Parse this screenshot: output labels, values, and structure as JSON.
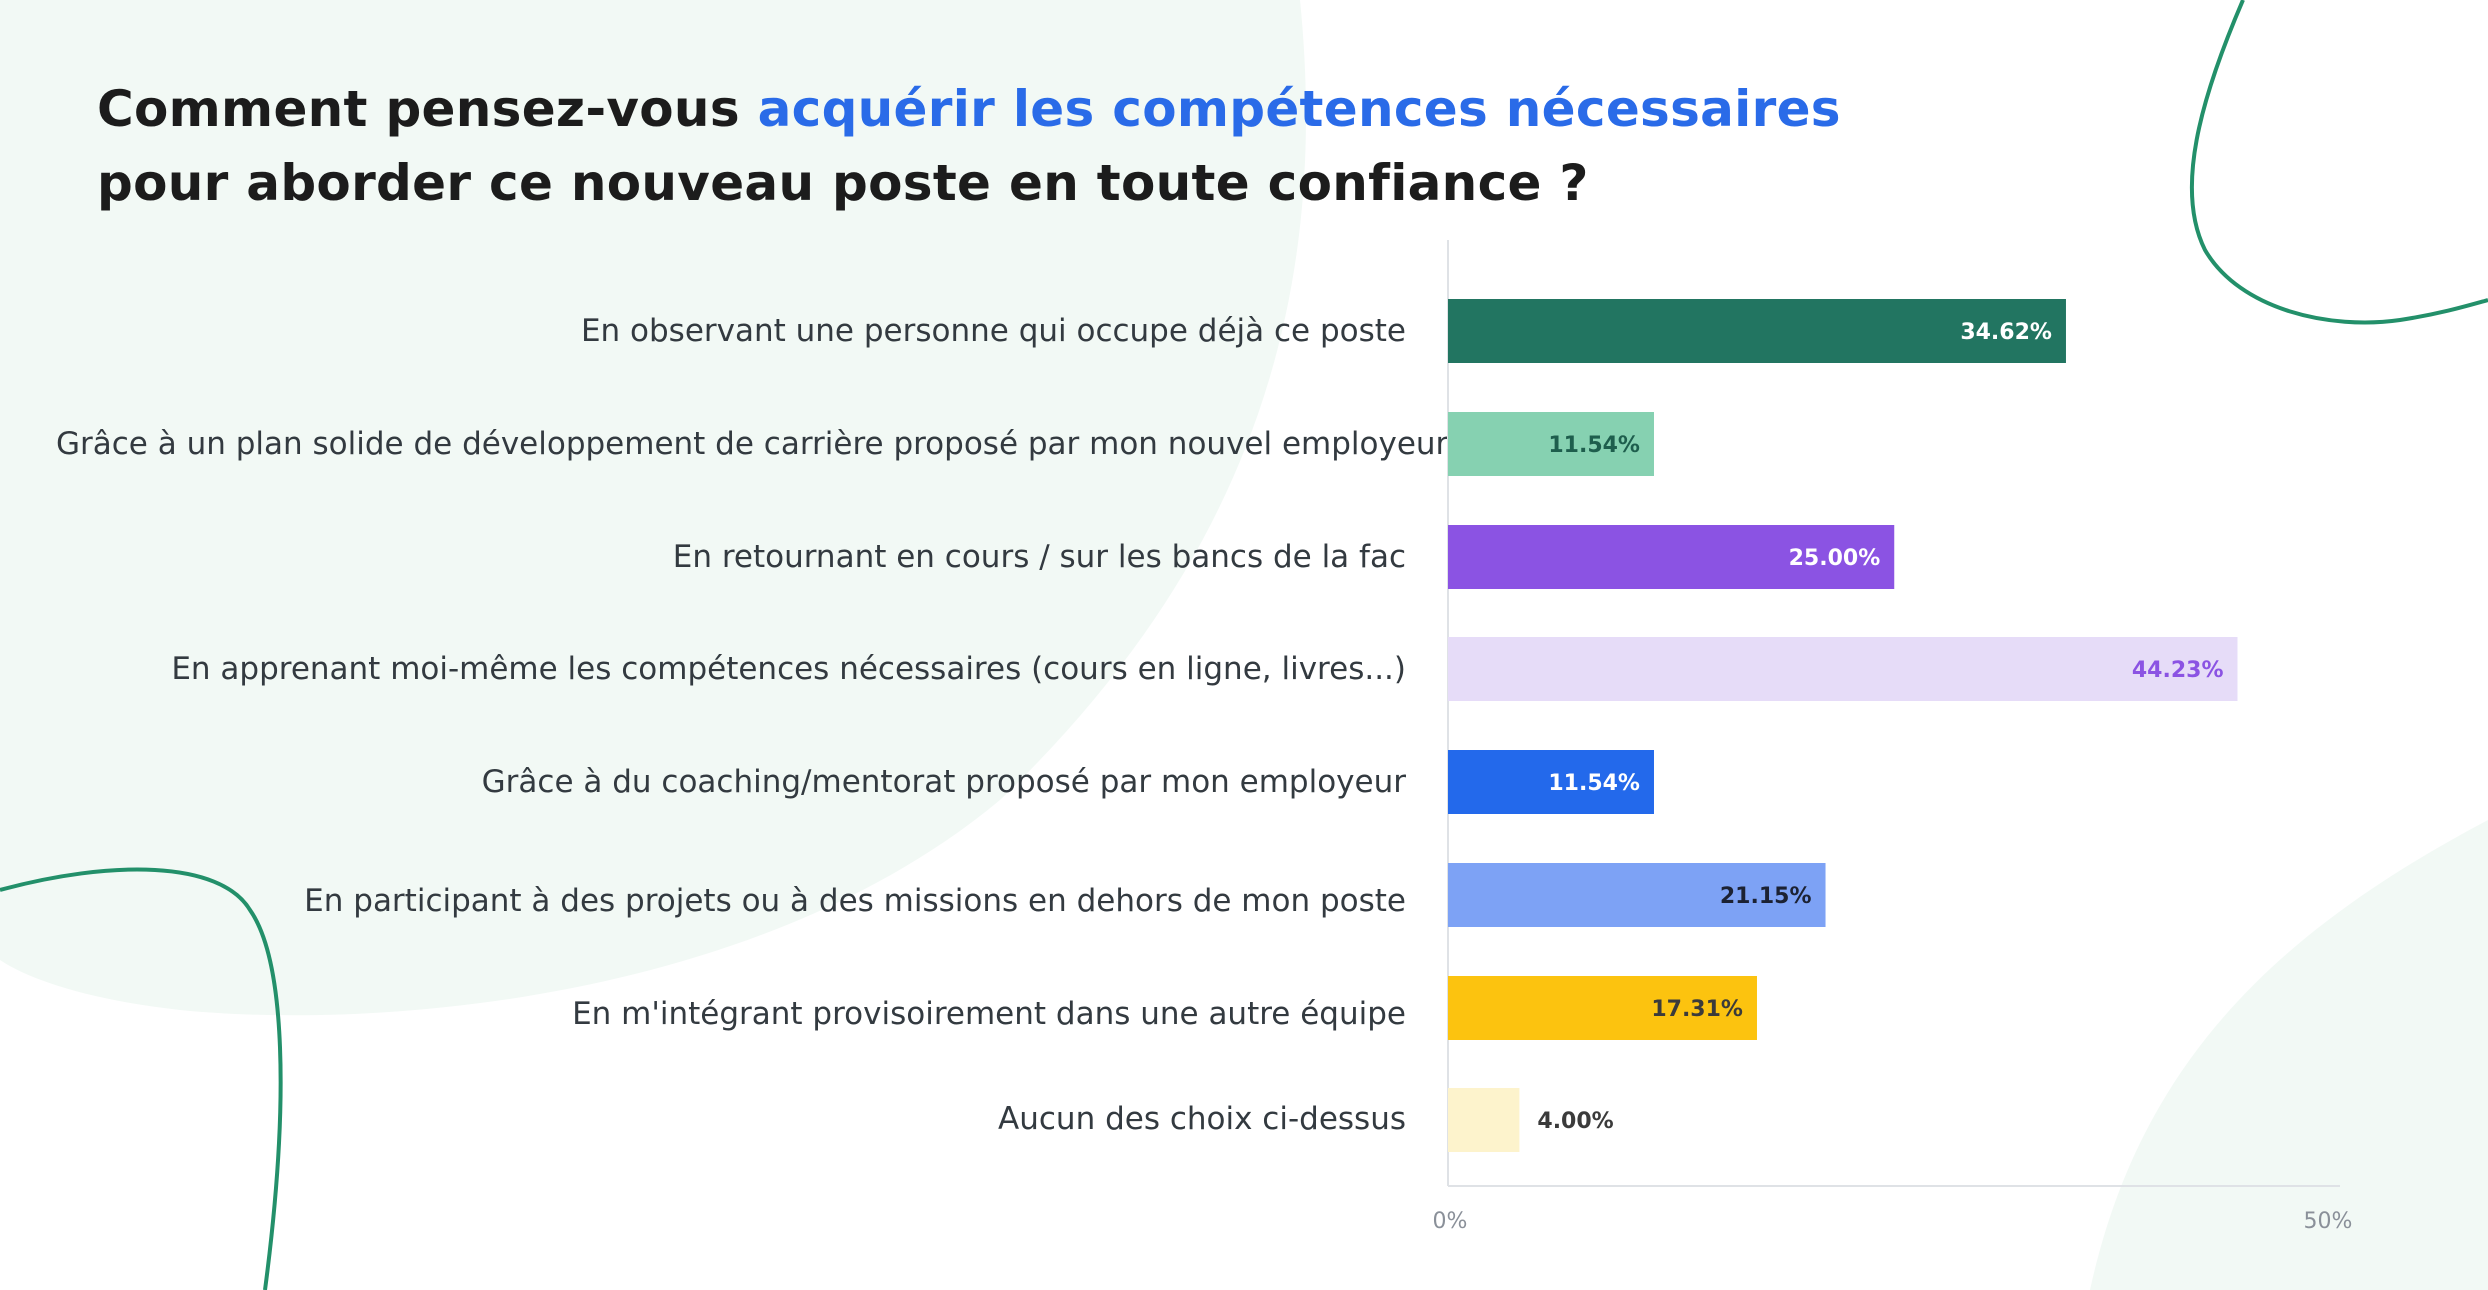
{
  "title": {
    "part1": "Comment pensez-vous ",
    "highlight": "acquérir les compétences nécessaires",
    "line2": "pour aborder ce nouveau poste en toute confiance ?"
  },
  "colors": {
    "title_text": "#1c1c1c",
    "title_highlight": "#2a6be8",
    "decor_line": "#23906a",
    "decor_blob": "#f2f9f5"
  },
  "chart_data": {
    "type": "bar",
    "orientation": "horizontal",
    "categories": [
      "En observant une personne qui occupe déjà ce poste",
      "Grâce à un plan solide de développement de carrière proposé par mon nouvel employeur",
      "En retournant en cours / sur les bancs de la fac",
      "En apprenant moi-même les compétences nécessaires (cours en ligne, livres...)",
      "Grâce à du coaching/mentorat proposé par mon employeur",
      "En participant à des projets ou à des missions en dehors de mon poste",
      "En m'intégrant provisoirement dans une autre équipe",
      "Aucun des choix ci-dessus"
    ],
    "values": [
      34.62,
      11.54,
      25.0,
      44.23,
      11.54,
      21.15,
      17.31,
      4.0
    ],
    "value_labels": [
      "34.62%",
      "11.54%",
      "25.00%",
      "44.23%",
      "11.54%",
      "21.15%",
      "17.31%",
      "4.00%"
    ],
    "bar_colors": [
      "#227561",
      "#86d1b1",
      "#8b53e3",
      "#e6dcf8",
      "#2369eb",
      "#7da2f5",
      "#fcc30f",
      "#fdf3cc"
    ],
    "label_colors": [
      "#ffffff",
      "#1e5e4d",
      "#ffffff",
      "#8b53e3",
      "#ffffff",
      "#1c2233",
      "#3b3b3b",
      "#3b3b3b"
    ],
    "xlim": [
      0,
      50
    ],
    "xticks": [
      "0%",
      "50%"
    ],
    "grid": false
  }
}
